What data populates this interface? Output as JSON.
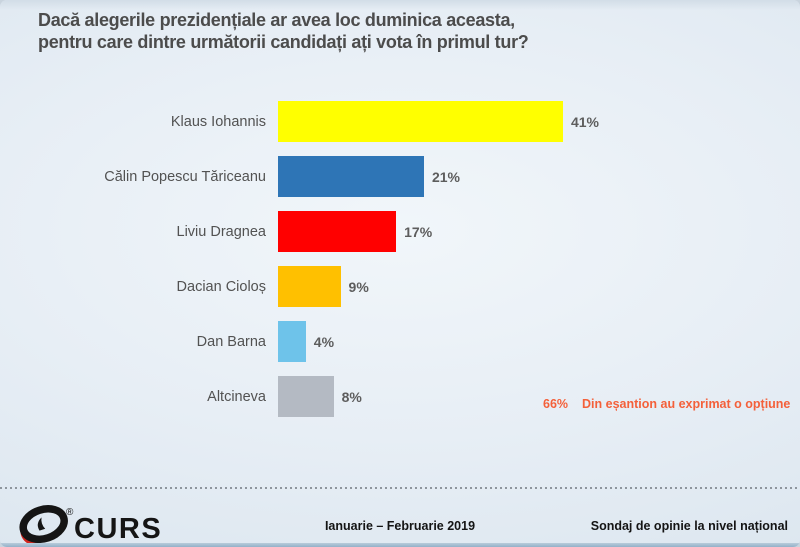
{
  "title": {
    "line1": "Dacă alegerile prezidențiale ar avea loc duminica aceasta,",
    "line2": "pentru care dintre următorii candidați ați vota în primul tur?"
  },
  "chart_data": {
    "type": "bar",
    "orientation": "horizontal",
    "title": "Dacă alegerile prezidențiale ar avea loc duminica aceasta, pentru care dintre următorii candidați ați vota în primul tur?",
    "categories": [
      "Klaus Iohannis",
      "Călin Popescu Tăriceanu",
      "Liviu Dragnea",
      "Dacian Cioloș",
      "Dan Barna",
      "Altcineva"
    ],
    "values": [
      41,
      21,
      17,
      9,
      4,
      8
    ],
    "value_labels": [
      "41%",
      "21%",
      "17%",
      "9%",
      "4%",
      "8%"
    ],
    "bar_colors": [
      "#FFFF00",
      "#2E75B6",
      "#FF0000",
      "#FFC000",
      "#6EC3EA",
      "#B4BAC3"
    ],
    "xlim": [
      0,
      45
    ],
    "grid": false,
    "legend": false,
    "annotation": "66% Din eșantion au exprimat o opțiune"
  },
  "note": {
    "value": "66%",
    "text": "Din eșantion au exprimat o opțiune",
    "color": "#F4603A"
  },
  "footer": {
    "logo_text": "CURS",
    "registered_mark": "®",
    "period": "Ianuarie – Februarie 2019",
    "scope": "Sondaj de opinie la nivel național"
  },
  "colors": {
    "title_text": "#4C4C4C",
    "label_text": "#525252",
    "footer_text": "#141414",
    "logo_red": "#D2261E",
    "logo_black": "#151515"
  }
}
